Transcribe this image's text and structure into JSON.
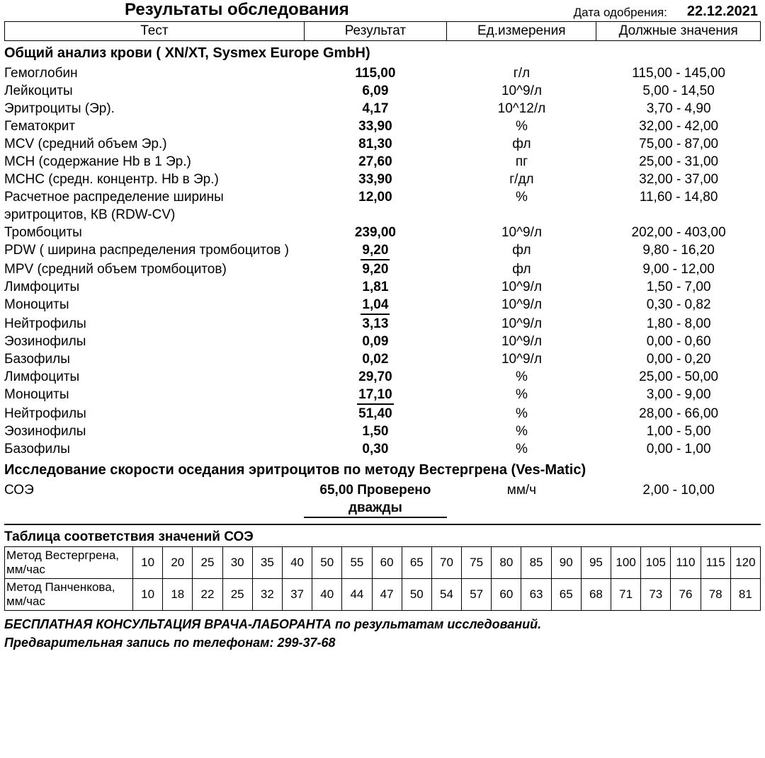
{
  "doc_title": "Результаты обследования",
  "date_label": "Дата одобрения:",
  "date_value": "22.12.2021",
  "columns": {
    "test": "Тест",
    "result": "Результат",
    "unit": "Ед.измерения",
    "ref": "Должные значения"
  },
  "col_widths": {
    "test": 420,
    "result": 200,
    "unit": 210,
    "ref": 230
  },
  "sections": [
    {
      "title": "Общий анализ крови ( XN/XT, Sysmex  Europe GmbH)",
      "rows": [
        {
          "test": "Гемоглобин",
          "val": "115,00",
          "unit": "г/л",
          "ref": "115,00 - 145,00"
        },
        {
          "test": "Лейкоциты",
          "val": "6,09",
          "unit": "10^9/л",
          "ref": "5,00 - 14,50"
        },
        {
          "test": "Эритроциты (Эр).",
          "val": "4,17",
          "unit": "10^12/л",
          "ref": "3,70 - 4,90"
        },
        {
          "test": "Гематокрит",
          "val": "33,90",
          "unit": "%",
          "ref": "32,00 - 42,00"
        },
        {
          "test": "MCV (средний объем Эр.)",
          "val": "81,30",
          "unit": "фл",
          "ref": "75,00 - 87,00"
        },
        {
          "test": "MCH (содержание Hb в 1 Эр.)",
          "val": "27,60",
          "unit": "пг",
          "ref": "25,00 - 31,00"
        },
        {
          "test": "MCHC (средн. концентр. Hb в Эр.)",
          "val": "33,90",
          "unit": "г/дл",
          "ref": "32,00 - 37,00"
        },
        {
          "test": "Расчетное распределение ширины эритроцитов, КВ (RDW-CV)",
          "val": "12,00",
          "unit": "%",
          "ref": "11,60 - 14,80"
        },
        {
          "test": "Тромбоциты",
          "val": "239,00",
          "unit": "10^9/л",
          "ref": "202,00 - 403,00"
        },
        {
          "test": "PDW ( ширина распределения тромбоцитов )",
          "val": "9,20",
          "unit": "фл",
          "ref": "9,80 - 16,20",
          "flag": true
        },
        {
          "test": "MPV (средний объем тромбоцитов)",
          "val": "9,20",
          "unit": "фл",
          "ref": "9,00 - 12,00"
        },
        {
          "test": "Лимфоциты",
          "val": "1,81",
          "unit": "10^9/л",
          "ref": "1,50 - 7,00"
        },
        {
          "test": "Моноциты",
          "val": "1,04",
          "unit": "10^9/л",
          "ref": "0,30 - 0,82",
          "flag": true
        },
        {
          "test": "Нейтрофилы",
          "val": "3,13",
          "unit": "10^9/л",
          "ref": "1,80 - 8,00"
        },
        {
          "test": "Эозинофилы",
          "val": "0,09",
          "unit": "10^9/л",
          "ref": "0,00 - 0,60"
        },
        {
          "test": "Базофилы",
          "val": "0,02",
          "unit": "10^9/л",
          "ref": "0,00 - 0,20"
        },
        {
          "test": "Лимфоциты",
          "val": "29,70",
          "unit": "%",
          "ref": "25,00 - 50,00",
          "indent": true
        },
        {
          "test": "Моноциты",
          "val": "17,10",
          "unit": "%",
          "ref": "3,00 - 9,00",
          "indent": true,
          "flag": true
        },
        {
          "test": "Нейтрофилы",
          "val": "51,40",
          "unit": "%",
          "ref": "28,00 - 66,00",
          "indent": true
        },
        {
          "test": "Эозинофилы",
          "val": "1,50",
          "unit": "%",
          "ref": "1,00 - 5,00",
          "indent": true
        },
        {
          "test": "Базофилы",
          "val": "0,30",
          "unit": "%",
          "ref": "0,00 - 1,00",
          "indent": true
        }
      ]
    },
    {
      "title": "Исследование скорости оседания эритроцитов по методу Вестергрена (Ves-Matic)",
      "rows": [
        {
          "test": "СОЭ",
          "val": "65,00 Проверено дважды",
          "unit": "мм/ч",
          "ref": "2,00 - 10,00",
          "flag": true
        }
      ]
    }
  ],
  "soe_table": {
    "title": "Таблица соответствия значений СОЭ",
    "row1_label": "Метод Вестергрена, мм/час",
    "row2_label": "Метод Панченкова, мм/час",
    "row1": [
      "10",
      "20",
      "25",
      "30",
      "35",
      "40",
      "50",
      "55",
      "60",
      "65",
      "70",
      "75",
      "80",
      "85",
      "90",
      "95",
      "100",
      "105",
      "110",
      "115",
      "120"
    ],
    "row2": [
      "10",
      "18",
      "22",
      "25",
      "32",
      "37",
      "40",
      "44",
      "47",
      "50",
      "54",
      "57",
      "60",
      "63",
      "65",
      "68",
      "71",
      "73",
      "76",
      "78",
      "81"
    ]
  },
  "footer": {
    "line1": "БЕСПЛАТНАЯ КОНСУЛЬТАЦИЯ ВРАЧА-ЛАБОРАНТА по результатам исследований.",
    "line2": "Предварительная запись по телефонам: 299-37-68"
  },
  "style": {
    "font_family": "Arial",
    "base_font_size": 19,
    "title_font_size": 24,
    "header_font_size": 19,
    "section_font_size": 20,
    "soe_font_size": 17,
    "footer_font_size": 18,
    "bg": "#ffffff",
    "fg": "#000000",
    "border": "#000000",
    "flag_underline": true
  }
}
